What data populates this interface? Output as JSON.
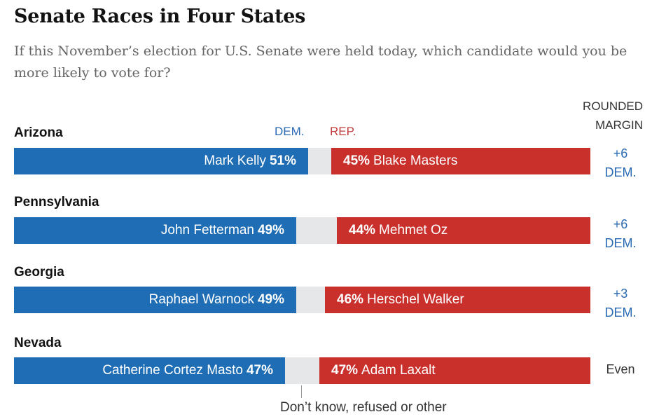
{
  "chart_data": {
    "type": "bar",
    "title": "Senate Races in Four States",
    "subtitle": "If this November’s election for U.S. Senate were held today, which candidate would you be more likely to vote for?",
    "dem_header": "DEM.",
    "rep_header": "REP.",
    "margin_header": "ROUNDED MARGIN",
    "other_label": "Don’t know, refused or other",
    "colors": {
      "dem": "#1f6db5",
      "rep": "#c9302c",
      "other": "#e6e7e9"
    },
    "states": [
      {
        "state": "Arizona",
        "dem_candidate": "Mark Kelly",
        "dem_pct": 51,
        "dem_pct_label": "51%",
        "rep_candidate": "Blake Masters",
        "rep_pct": 45,
        "rep_pct_label": "45%",
        "margin_value": "+6",
        "margin_party": "DEM."
      },
      {
        "state": "Pennsylvania",
        "dem_candidate": "John Fetterman",
        "dem_pct": 49,
        "dem_pct_label": "49%",
        "rep_candidate": "Mehmet Oz",
        "rep_pct": 44,
        "rep_pct_label": "44%",
        "margin_value": "+6",
        "margin_party": "DEM."
      },
      {
        "state": "Georgia",
        "dem_candidate": "Raphael Warnock",
        "dem_pct": 49,
        "dem_pct_label": "49%",
        "rep_candidate": "Herschel Walker",
        "rep_pct": 46,
        "rep_pct_label": "46%",
        "margin_value": "+3",
        "margin_party": "DEM."
      },
      {
        "state": "Nevada",
        "dem_candidate": "Catherine Cortez Masto",
        "dem_pct": 47,
        "dem_pct_label": "47%",
        "rep_candidate": "Adam Laxalt",
        "rep_pct": 47,
        "rep_pct_label": "47%",
        "margin_value": "Even",
        "margin_party": ""
      }
    ]
  }
}
